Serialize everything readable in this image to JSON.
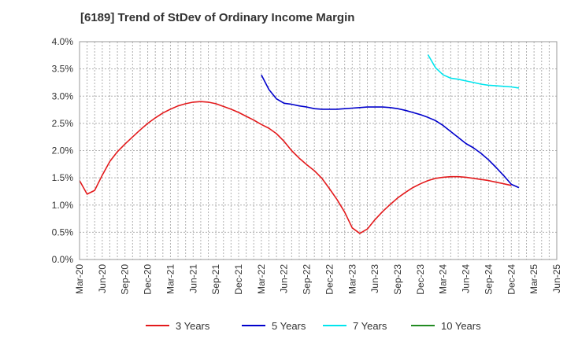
{
  "chart_data": {
    "type": "line",
    "title": "[6189]  Trend of StDev of Ordinary Income Margin",
    "xlabel": "",
    "ylabel": "",
    "x_ticks": [
      "Mar-20",
      "Jun-20",
      "Sep-20",
      "Dec-20",
      "Mar-21",
      "Jun-21",
      "Sep-21",
      "Dec-21",
      "Mar-22",
      "Jun-22",
      "Sep-22",
      "Dec-22",
      "Mar-23",
      "Jun-23",
      "Sep-23",
      "Dec-23",
      "Mar-24",
      "Jun-24",
      "Sep-24",
      "Dec-24",
      "Mar-25",
      "Jun-25"
    ],
    "y_ticks": [
      "0.0%",
      "0.5%",
      "1.0%",
      "1.5%",
      "2.0%",
      "2.5%",
      "3.0%",
      "3.5%",
      "4.0%"
    ],
    "ylim": [
      0,
      4.0
    ],
    "grid": true,
    "legend_position": "bottom",
    "series": [
      {
        "name": "3 Years",
        "color": "#e31a1c",
        "points": [
          [
            0,
            1.45
          ],
          [
            1,
            1.2
          ],
          [
            2,
            1.27
          ],
          [
            3,
            1.55
          ],
          [
            4,
            1.8
          ],
          [
            5,
            1.98
          ],
          [
            6,
            2.12
          ],
          [
            7,
            2.25
          ],
          [
            8,
            2.38
          ],
          [
            9,
            2.5
          ],
          [
            10,
            2.6
          ],
          [
            11,
            2.69
          ],
          [
            12,
            2.76
          ],
          [
            13,
            2.82
          ],
          [
            14,
            2.86
          ],
          [
            15,
            2.89
          ],
          [
            16,
            2.9
          ],
          [
            17,
            2.89
          ],
          [
            18,
            2.86
          ],
          [
            19,
            2.81
          ],
          [
            20,
            2.76
          ],
          [
            21,
            2.7
          ],
          [
            22,
            2.63
          ],
          [
            23,
            2.56
          ],
          [
            24,
            2.48
          ],
          [
            25,
            2.41
          ],
          [
            26,
            2.31
          ],
          [
            27,
            2.17
          ],
          [
            28,
            2.0
          ],
          [
            29,
            1.86
          ],
          [
            30,
            1.74
          ],
          [
            31,
            1.63
          ],
          [
            32,
            1.49
          ],
          [
            33,
            1.3
          ],
          [
            34,
            1.1
          ],
          [
            35,
            0.87
          ],
          [
            36,
            0.58
          ],
          [
            37,
            0.48
          ],
          [
            38,
            0.56
          ],
          [
            39,
            0.73
          ],
          [
            40,
            0.88
          ],
          [
            41,
            1.01
          ],
          [
            42,
            1.13
          ],
          [
            43,
            1.23
          ],
          [
            44,
            1.32
          ],
          [
            45,
            1.39
          ],
          [
            46,
            1.45
          ],
          [
            47,
            1.49
          ],
          [
            48,
            1.51
          ],
          [
            49,
            1.52
          ],
          [
            50,
            1.52
          ],
          [
            51,
            1.51
          ],
          [
            52,
            1.49
          ],
          [
            53,
            1.47
          ],
          [
            54,
            1.45
          ],
          [
            55,
            1.42
          ],
          [
            56,
            1.39
          ],
          [
            57,
            1.36
          ]
        ]
      },
      {
        "name": "5 Years",
        "color": "#0000cc",
        "points": [
          [
            24,
            3.39
          ],
          [
            25,
            3.12
          ],
          [
            26,
            2.95
          ],
          [
            27,
            2.87
          ],
          [
            28,
            2.85
          ],
          [
            29,
            2.82
          ],
          [
            30,
            2.8
          ],
          [
            31,
            2.77
          ],
          [
            32,
            2.76
          ],
          [
            33,
            2.76
          ],
          [
            34,
            2.76
          ],
          [
            35,
            2.77
          ],
          [
            36,
            2.78
          ],
          [
            37,
            2.79
          ],
          [
            38,
            2.8
          ],
          [
            39,
            2.8
          ],
          [
            40,
            2.8
          ],
          [
            41,
            2.79
          ],
          [
            42,
            2.77
          ],
          [
            43,
            2.74
          ],
          [
            44,
            2.7
          ],
          [
            45,
            2.66
          ],
          [
            46,
            2.61
          ],
          [
            47,
            2.55
          ],
          [
            48,
            2.46
          ],
          [
            49,
            2.35
          ],
          [
            50,
            2.24
          ],
          [
            51,
            2.13
          ],
          [
            52,
            2.05
          ],
          [
            53,
            1.95
          ],
          [
            54,
            1.83
          ],
          [
            55,
            1.69
          ],
          [
            56,
            1.54
          ],
          [
            57,
            1.38
          ],
          [
            58,
            1.32
          ]
        ]
      },
      {
        "name": "7 Years",
        "color": "#00e5ee",
        "points": [
          [
            46,
            3.76
          ],
          [
            47,
            3.52
          ],
          [
            48,
            3.39
          ],
          [
            49,
            3.33
          ],
          [
            50,
            3.31
          ],
          [
            51,
            3.28
          ],
          [
            52,
            3.25
          ],
          [
            53,
            3.22
          ],
          [
            54,
            3.2
          ],
          [
            55,
            3.19
          ],
          [
            56,
            3.18
          ],
          [
            57,
            3.17
          ],
          [
            58,
            3.15
          ]
        ]
      },
      {
        "name": "10 Years",
        "color": "#228b22",
        "points": []
      }
    ]
  }
}
